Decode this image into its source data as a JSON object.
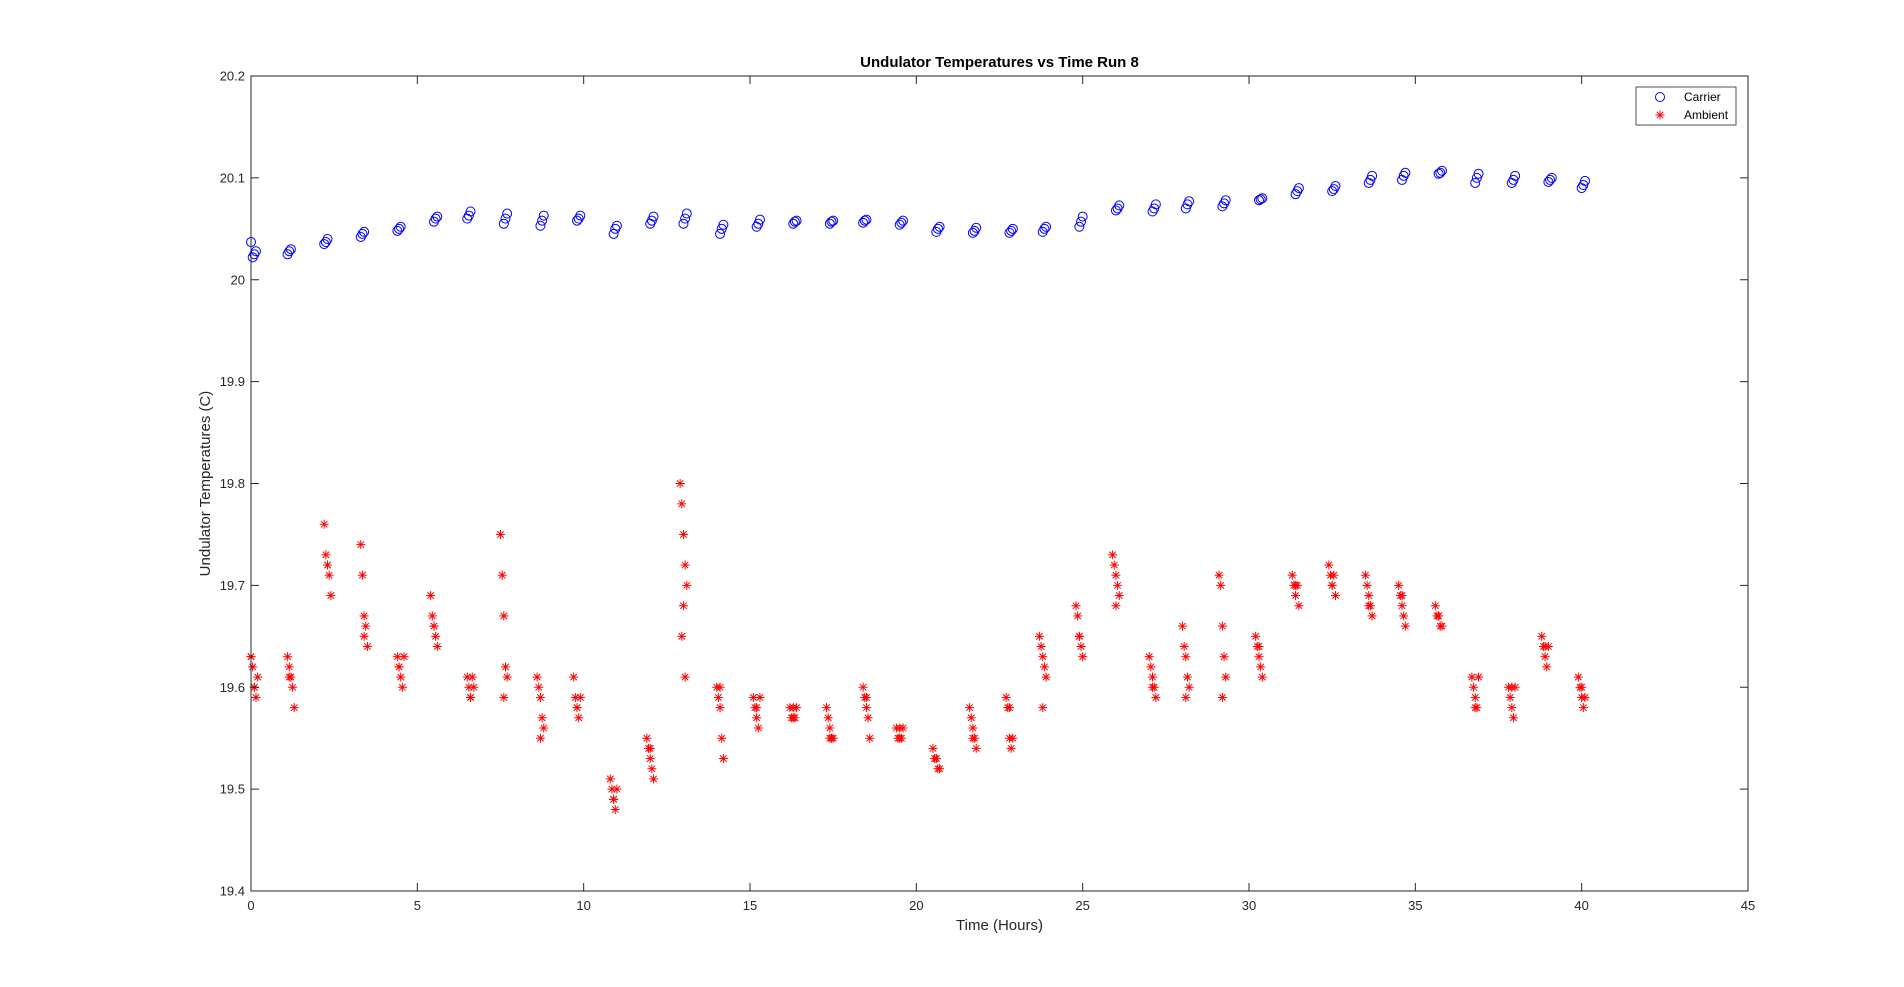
{
  "chart_data": {
    "type": "scatter",
    "title": "Undulator Temperatures vs Time Run 8",
    "xlabel": "Time (Hours)",
    "ylabel": "Undulator Temperatures (C)",
    "xlim": [
      0,
      45
    ],
    "ylim": [
      19.4,
      20.2
    ],
    "xticks": [
      "0",
      "5",
      "10",
      "15",
      "20",
      "25",
      "30",
      "35",
      "40",
      "45"
    ],
    "yticks": [
      "19.4",
      "19.5",
      "19.6",
      "19.7",
      "19.8",
      "19.9",
      "20",
      "20.1",
      "20.2"
    ],
    "grid": false,
    "legend_position": "top-right",
    "series": [
      {
        "name": "Carrier",
        "marker": "circle",
        "color": "#0000ff",
        "x": [
          0.0,
          0.05,
          0.1,
          0.15,
          1.1,
          1.15,
          1.2,
          2.2,
          2.25,
          2.3,
          3.3,
          3.35,
          3.4,
          4.4,
          4.45,
          4.5,
          5.5,
          5.55,
          5.6,
          6.5,
          6.55,
          6.6,
          7.6,
          7.65,
          7.7,
          8.7,
          8.75,
          8.8,
          9.8,
          9.85,
          9.9,
          10.9,
          10.95,
          11.0,
          12.0,
          12.05,
          12.1,
          13.0,
          13.05,
          13.1,
          14.1,
          14.15,
          14.2,
          15.2,
          15.25,
          15.3,
          16.3,
          16.35,
          16.4,
          17.4,
          17.45,
          17.5,
          18.4,
          18.45,
          18.5,
          19.5,
          19.55,
          19.6,
          20.6,
          20.65,
          20.7,
          21.7,
          21.75,
          21.8,
          22.8,
          22.85,
          22.9,
          23.8,
          23.85,
          23.9,
          24.9,
          24.95,
          25.0,
          26.0,
          26.05,
          26.1,
          27.1,
          27.15,
          27.2,
          28.1,
          28.15,
          28.2,
          29.2,
          29.25,
          29.3,
          30.3,
          30.35,
          30.4,
          31.4,
          31.45,
          31.5,
          32.5,
          32.55,
          32.6,
          33.6,
          33.65,
          33.7,
          34.6,
          34.65,
          34.7,
          35.7,
          35.75,
          35.8,
          36.8,
          36.85,
          36.9,
          37.9,
          37.95,
          38.0,
          39.0,
          39.05,
          39.1,
          40.0,
          40.05,
          40.1
        ],
        "y": [
          20.037,
          20.022,
          20.025,
          20.028,
          20.025,
          20.028,
          20.03,
          20.035,
          20.037,
          20.04,
          20.042,
          20.045,
          20.047,
          20.048,
          20.05,
          20.052,
          20.057,
          20.06,
          20.062,
          20.06,
          20.063,
          20.067,
          20.055,
          20.06,
          20.065,
          20.053,
          20.058,
          20.063,
          20.058,
          20.06,
          20.063,
          20.045,
          20.05,
          20.053,
          20.055,
          20.058,
          20.062,
          20.055,
          20.06,
          20.065,
          20.045,
          20.05,
          20.054,
          20.052,
          20.055,
          20.059,
          20.055,
          20.057,
          20.058,
          20.055,
          20.057,
          20.058,
          20.056,
          20.058,
          20.059,
          20.054,
          20.056,
          20.058,
          20.047,
          20.05,
          20.052,
          20.046,
          20.048,
          20.051,
          20.046,
          20.048,
          20.05,
          20.047,
          20.05,
          20.052,
          20.052,
          20.057,
          20.062,
          20.068,
          20.07,
          20.073,
          20.067,
          20.07,
          20.074,
          20.07,
          20.074,
          20.077,
          20.072,
          20.075,
          20.078,
          20.078,
          20.079,
          20.08,
          20.084,
          20.087,
          20.09,
          20.087,
          20.089,
          20.092,
          20.095,
          20.098,
          20.102,
          20.098,
          20.102,
          20.105,
          20.104,
          20.105,
          20.107,
          20.095,
          20.1,
          20.104,
          20.095,
          20.098,
          20.102,
          20.096,
          20.098,
          20.1,
          20.09,
          20.093,
          20.097
        ]
      },
      {
        "name": "Ambient",
        "marker": "asterisk",
        "color": "#ff0000",
        "x": [
          0.0,
          0.05,
          0.1,
          0.15,
          0.2,
          0.0,
          0.1,
          1.1,
          1.15,
          1.2,
          1.25,
          1.3,
          1.15,
          2.2,
          2.25,
          2.3,
          2.35,
          2.4,
          2.3,
          3.3,
          3.35,
          3.4,
          3.45,
          3.5,
          3.4,
          4.4,
          4.45,
          4.5,
          4.55,
          4.6,
          4.45,
          5.4,
          5.45,
          5.5,
          5.55,
          5.6,
          5.5,
          6.5,
          6.55,
          6.6,
          6.65,
          6.7,
          6.6,
          7.5,
          7.55,
          7.6,
          7.65,
          7.7,
          7.6,
          8.6,
          8.65,
          8.7,
          8.75,
          8.8,
          8.7,
          9.7,
          9.75,
          9.8,
          9.85,
          9.9,
          9.8,
          10.8,
          10.85,
          10.9,
          10.95,
          11.0,
          10.9,
          11.9,
          11.95,
          12.0,
          12.05,
          12.1,
          12.0,
          12.9,
          12.95,
          13.0,
          13.05,
          13.1,
          13.0,
          12.95,
          13.05,
          14.0,
          14.05,
          14.1,
          14.15,
          14.2,
          14.1,
          15.1,
          15.15,
          15.2,
          15.25,
          15.3,
          15.2,
          16.2,
          16.25,
          16.3,
          16.35,
          16.4,
          16.3,
          17.3,
          17.35,
          17.4,
          17.45,
          17.5,
          17.4,
          18.4,
          18.45,
          18.5,
          18.55,
          18.6,
          18.5,
          19.4,
          19.45,
          19.5,
          19.55,
          19.6,
          19.5,
          20.5,
          20.55,
          20.6,
          20.65,
          20.7,
          20.6,
          21.6,
          21.65,
          21.7,
          21.75,
          21.8,
          21.7,
          22.7,
          22.75,
          22.8,
          22.85,
          22.9,
          22.8,
          23.7,
          23.75,
          23.8,
          23.85,
          23.9,
          23.8,
          24.8,
          24.85,
          24.9,
          24.95,
          25.0,
          24.9,
          25.9,
          25.95,
          26.0,
          26.05,
          26.1,
          26.0,
          27.0,
          27.05,
          27.1,
          27.15,
          27.2,
          27.1,
          28.0,
          28.05,
          28.1,
          28.15,
          28.2,
          28.1,
          29.1,
          29.15,
          29.2,
          29.25,
          29.3,
          29.2,
          30.2,
          30.25,
          30.3,
          30.35,
          30.4,
          30.3,
          31.3,
          31.35,
          31.4,
          31.45,
          31.5,
          31.4,
          32.4,
          32.45,
          32.5,
          32.55,
          32.6,
          32.5,
          33.5,
          33.55,
          33.6,
          33.65,
          33.7,
          33.6,
          34.5,
          34.55,
          34.6,
          34.65,
          34.7,
          34.6,
          35.6,
          35.65,
          35.7,
          35.75,
          35.8,
          35.7,
          36.7,
          36.75,
          36.8,
          36.85,
          36.9,
          36.8,
          37.8,
          37.85,
          37.9,
          37.95,
          38.0,
          37.9,
          38.8,
          38.85,
          38.9,
          38.95,
          39.0,
          38.9,
          39.9,
          39.95,
          40.0,
          40.05,
          40.1,
          40.0
        ],
        "y": [
          19.63,
          19.62,
          19.6,
          19.59,
          19.61,
          19.63,
          19.6,
          19.63,
          19.62,
          19.61,
          19.6,
          19.58,
          19.61,
          19.76,
          19.73,
          19.72,
          19.71,
          19.69,
          19.72,
          19.74,
          19.71,
          19.67,
          19.66,
          19.64,
          19.65,
          19.63,
          19.62,
          19.61,
          19.6,
          19.63,
          19.62,
          19.69,
          19.67,
          19.66,
          19.65,
          19.64,
          19.66,
          19.61,
          19.6,
          19.59,
          19.61,
          19.6,
          19.59,
          19.75,
          19.71,
          19.67,
          19.62,
          19.61,
          19.59,
          19.61,
          19.6,
          19.59,
          19.57,
          19.56,
          19.55,
          19.61,
          19.59,
          19.58,
          19.57,
          19.59,
          19.58,
          19.51,
          19.5,
          19.49,
          19.48,
          19.5,
          19.49,
          19.55,
          19.54,
          19.53,
          19.52,
          19.51,
          19.54,
          19.8,
          19.78,
          19.75,
          19.72,
          19.7,
          19.68,
          19.65,
          19.61,
          19.6,
          19.59,
          19.58,
          19.55,
          19.53,
          19.6,
          19.59,
          19.58,
          19.57,
          19.56,
          19.59,
          19.58,
          19.58,
          19.57,
          19.58,
          19.57,
          19.58,
          19.57,
          19.58,
          19.57,
          19.56,
          19.55,
          19.55,
          19.55,
          19.6,
          19.59,
          19.58,
          19.57,
          19.55,
          19.59,
          19.56,
          19.55,
          19.56,
          19.55,
          19.56,
          19.55,
          19.54,
          19.53,
          19.53,
          19.52,
          19.52,
          19.53,
          19.58,
          19.57,
          19.56,
          19.55,
          19.54,
          19.55,
          19.59,
          19.58,
          19.55,
          19.54,
          19.55,
          19.58,
          19.65,
          19.64,
          19.63,
          19.62,
          19.61,
          19.58,
          19.68,
          19.67,
          19.65,
          19.64,
          19.63,
          19.65,
          19.73,
          19.72,
          19.71,
          19.7,
          19.69,
          19.68,
          19.63,
          19.62,
          19.61,
          19.6,
          19.59,
          19.6,
          19.66,
          19.64,
          19.63,
          19.61,
          19.6,
          19.59,
          19.71,
          19.7,
          19.66,
          19.63,
          19.61,
          19.59,
          19.65,
          19.64,
          19.63,
          19.62,
          19.61,
          19.64,
          19.71,
          19.7,
          19.69,
          19.7,
          19.68,
          19.7,
          19.72,
          19.71,
          19.7,
          19.71,
          19.69,
          19.7,
          19.71,
          19.7,
          19.69,
          19.68,
          19.67,
          19.68,
          19.7,
          19.69,
          19.68,
          19.67,
          19.66,
          19.69,
          19.68,
          19.67,
          19.67,
          19.66,
          19.66,
          19.67,
          19.61,
          19.6,
          19.59,
          19.58,
          19.61,
          19.58,
          19.6,
          19.59,
          19.58,
          19.57,
          19.6,
          19.6,
          19.65,
          19.64,
          19.63,
          19.62,
          19.64,
          19.64,
          19.61,
          19.6,
          19.59,
          19.58,
          19.59,
          19.6
        ]
      }
    ]
  }
}
